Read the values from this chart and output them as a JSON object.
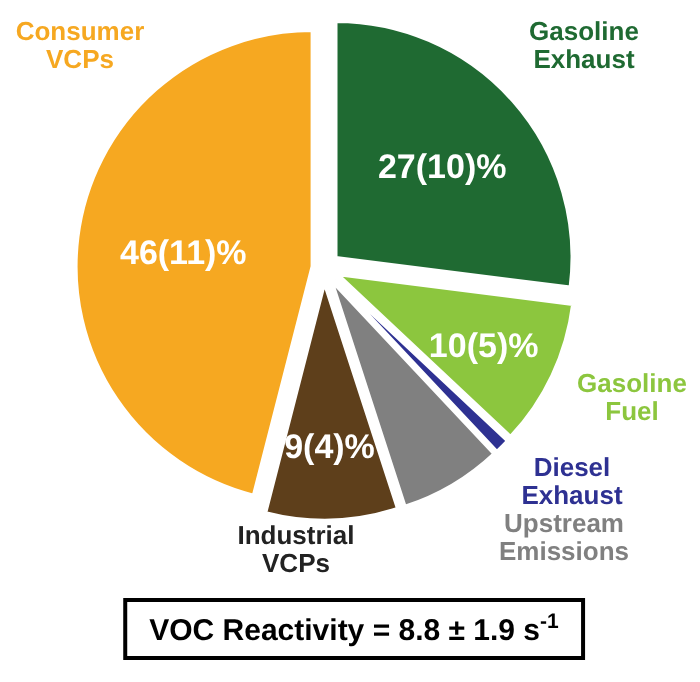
{
  "chart_data": {
    "type": "pie",
    "categories": [
      "Gasoline Exhaust",
      "Gasoline Fuel",
      "Diesel Exhaust",
      "Upstream Emissions",
      "Industrial VCPs",
      "Consumer VCPs"
    ],
    "values": [
      27,
      10,
      1,
      7,
      9,
      46
    ],
    "value_labels": [
      "27(10)%",
      "10(5)%",
      null,
      null,
      "9(4)%",
      "46(11)%"
    ],
    "colors": [
      "#1f6a32",
      "#8cc63e",
      "#2e3192",
      "#808080",
      "#5e3f1b",
      "#f6a821"
    ],
    "annotations": [
      "VOC Reactivity = 8.8 ± 1.9 s$^{-1}$"
    ]
  }
}
